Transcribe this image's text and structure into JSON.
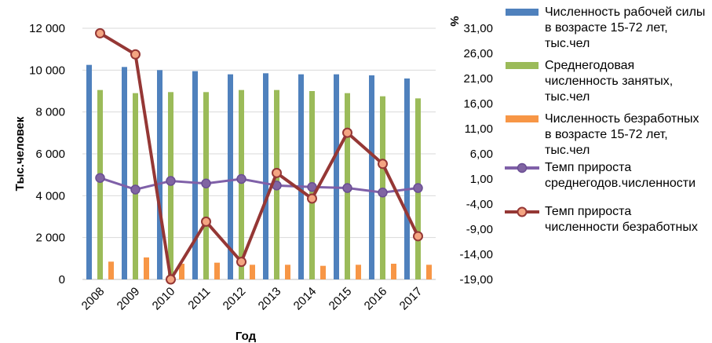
{
  "chart_data": {
    "type": "bar",
    "categories": [
      "2008",
      "2009",
      "2010",
      "2011",
      "2012",
      "2013",
      "2014",
      "2015",
      "2016",
      "2017"
    ],
    "xlabel": "Год",
    "ylabel": "Тыс.человек",
    "y2label": "%",
    "ylim": [
      0,
      12000
    ],
    "y2lim": [
      -19,
      31
    ],
    "yticks": [
      "0",
      "2 000",
      "4 000",
      "6 000",
      "8 000",
      "10 000",
      "12 000"
    ],
    "y2ticks": [
      "-19,00",
      "-14,00",
      "-9,00",
      "-4,00",
      "1,00",
      "6,00",
      "11,00",
      "16,00",
      "21,00",
      "26,00",
      "31,00"
    ],
    "grid": true,
    "legend_position": "right",
    "series": [
      {
        "name": "Численность рабочей силы в возрасте 15-72 лет, тыс.чел",
        "kind": "bar",
        "axis": "left",
        "color": "#4f81bd",
        "values": [
          10250,
          10150,
          10000,
          9950,
          9800,
          9850,
          9800,
          9800,
          9750,
          9600
        ]
      },
      {
        "name": "Среднегодовая численность занятых, тыс.чел",
        "kind": "bar",
        "axis": "left",
        "color": "#9bbb59",
        "values": [
          9050,
          8900,
          8950,
          8950,
          9050,
          9050,
          9000,
          8900,
          8750,
          8650
        ]
      },
      {
        "name": "Численность безработных в возрасте 15-72 лет, тыс.чел",
        "kind": "bar",
        "axis": "left",
        "color": "#f79646",
        "values": [
          850,
          1050,
          750,
          800,
          700,
          700,
          650,
          700,
          750,
          700
        ]
      },
      {
        "name": "Темп прироста среднегодов.численности",
        "kind": "line",
        "axis": "right",
        "color": "#7f60a8",
        "values": [
          1.2,
          -1.1,
          0.6,
          0.1,
          1.0,
          -0.3,
          -0.6,
          -0.8,
          -1.7,
          -0.8
        ]
      },
      {
        "name": "Темп прироста численности безработных",
        "kind": "line",
        "axis": "right",
        "color": "#953735",
        "values": [
          30.0,
          25.8,
          -19.0,
          -7.5,
          -15.5,
          2.2,
          -2.9,
          10.2,
          4.0,
          -10.4
        ]
      }
    ]
  }
}
